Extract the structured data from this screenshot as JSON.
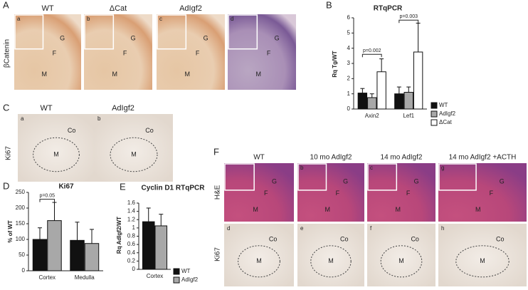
{
  "panels": {
    "letters": [
      "A",
      "B",
      "C",
      "D",
      "E",
      "F"
    ],
    "A": {
      "row_label": "βCatenin",
      "images": [
        {
          "title": "WT",
          "letter": "a",
          "labels": [
            "G",
            "F",
            "M"
          ]
        },
        {
          "title": "ΔCat",
          "letter": "b",
          "labels": [
            "G",
            "F",
            "M"
          ]
        },
        {
          "title": "AdIgf2",
          "letter": "c",
          "labels": [
            "G",
            "F",
            "M"
          ]
        },
        {
          "letter": "d",
          "labels": [
            "G",
            "F",
            "M"
          ]
        }
      ]
    },
    "C": {
      "row_label": "Ki67",
      "images": [
        {
          "title": "WT",
          "letter": "a",
          "labels": [
            "Co",
            "M"
          ]
        },
        {
          "title": "AdIgf2",
          "letter": "b",
          "labels": [
            "Co",
            "M"
          ]
        }
      ]
    },
    "F": {
      "titles": [
        "WT",
        "10 mo AdIgf2",
        "14 mo AdIgf2",
        "14 mo AdIgf2 +ACTH"
      ],
      "row_labels": [
        "H&E",
        "Ki67"
      ],
      "rows": [
        [
          {
            "labels": [
              "G",
              "F",
              "M"
            ]
          },
          {
            "letter": "b",
            "labels": [
              "G",
              "F",
              "M"
            ]
          },
          {
            "letter": "c",
            "labels": [
              "G",
              "F",
              "M"
            ]
          },
          {
            "letter": "g",
            "labels": [
              "G",
              "F",
              "M"
            ]
          }
        ],
        [
          {
            "letter": "d",
            "labels": [
              "Co",
              "M"
            ]
          },
          {
            "letter": "e",
            "labels": [
              "Co",
              "M"
            ]
          },
          {
            "letter": "f",
            "labels": [
              "Co",
              "M"
            ]
          },
          {
            "letter": "h",
            "labels": [
              "Co",
              "M"
            ]
          }
        ]
      ]
    }
  },
  "chart_data": [
    {
      "type": "bar",
      "title": "RTqPCR",
      "y_label": "Rq Tg/WT",
      "categories": [
        "Axin2",
        "Lef1"
      ],
      "series": [
        {
          "name": "WT",
          "color": "#111111",
          "values": [
            1.05,
            1.0
          ],
          "errors": [
            0.3,
            0.45
          ]
        },
        {
          "name": "AdIgf2",
          "color": "#a8a8a8",
          "values": [
            0.75,
            1.1
          ],
          "errors": [
            0.25,
            0.35
          ]
        },
        {
          "name": "ΔCat",
          "color": "#ffffff",
          "values": [
            2.45,
            3.75
          ],
          "errors": [
            0.85,
            1.9
          ]
        }
      ],
      "annotations": [
        "p=0.002",
        "p=0.003"
      ],
      "ylim": [
        0,
        6
      ],
      "yticks": [
        0,
        1,
        2,
        3,
        4,
        5,
        6
      ],
      "legend": true
    },
    {
      "type": "bar",
      "title": "Ki67",
      "y_label": "% of WT",
      "categories": [
        "Cortex",
        "Medulla"
      ],
      "series": [
        {
          "name": "WT",
          "color": "#111111",
          "values": [
            100,
            97
          ],
          "errors": [
            37,
            58
          ]
        },
        {
          "name": "AdIgf2",
          "color": "#a8a8a8",
          "values": [
            160,
            87
          ],
          "errors": [
            58,
            45
          ]
        }
      ],
      "annotations": [
        "p=0.05"
      ],
      "ylim": [
        0,
        250
      ],
      "yticks": [
        0,
        50,
        100,
        150,
        200,
        250
      ],
      "legend": false
    },
    {
      "type": "bar",
      "title": "Cyclin D1 RTqPCR",
      "y_label": "Rq AdIgf2/WT",
      "categories": [
        "Cortex"
      ],
      "series": [
        {
          "name": "WT",
          "color": "#111111",
          "values": [
            1.15
          ],
          "errors": [
            0.33
          ]
        },
        {
          "name": "AdIgf2",
          "color": "#a8a8a8",
          "values": [
            1.05
          ],
          "errors": [
            0.28
          ]
        }
      ],
      "ylim": [
        0,
        1.6
      ],
      "yticks": [
        0,
        0.2,
        0.4,
        0.6,
        0.8,
        1,
        1.2,
        1.4,
        1.6
      ],
      "legend": true
    }
  ]
}
